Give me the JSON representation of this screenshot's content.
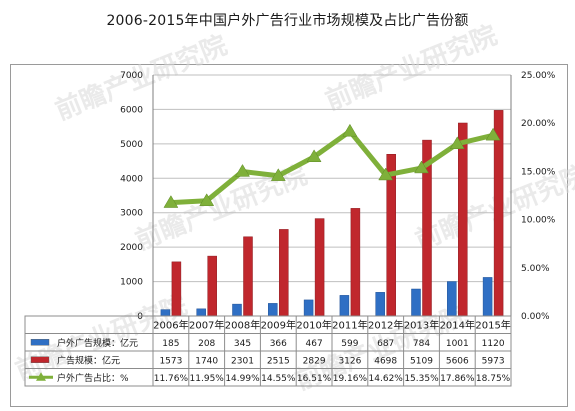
{
  "title": "2006-2015年中国户外广告行业市场规模及占比广告份额",
  "watermark": "前瞻产业研究院",
  "colors": {
    "outdoor": "#2f6fc4",
    "ad": "#c0272d",
    "share": "#7fb03a",
    "grid": "#bfbfbf"
  },
  "chart_data": {
    "type": "bar",
    "categories": [
      "2006年",
      "2007年",
      "2008年",
      "2009年",
      "2010年",
      "2011年",
      "2012年",
      "2013年",
      "2014年",
      "2015年"
    ],
    "y_left_ticks": [
      "0",
      "1000",
      "2000",
      "3000",
      "4000",
      "5000",
      "6000",
      "7000"
    ],
    "y_right_ticks": [
      "0.00%",
      "5.00%",
      "10.00%",
      "15.00%",
      "20.00%",
      "25.00%"
    ],
    "ylim_left": [
      0,
      7000
    ],
    "ylim_right": [
      0,
      25
    ],
    "grid": true,
    "legend": "table-below",
    "series": [
      {
        "name": "户外广告规模：亿元",
        "type": "bar",
        "axis": "left",
        "color": "#2f6fc4",
        "values": [
          185,
          208,
          345,
          366,
          467,
          599,
          687,
          784,
          1001,
          1120
        ],
        "labels": [
          "185",
          "208",
          "345",
          "366",
          "467",
          "599",
          "687",
          "784",
          "1001",
          "1120"
        ]
      },
      {
        "name": "广告规模：亿元",
        "type": "bar",
        "axis": "left",
        "color": "#c0272d",
        "values": [
          1573,
          1740,
          2301,
          2515,
          2829,
          3126,
          4698,
          5109,
          5606,
          5973
        ],
        "labels": [
          "1573",
          "1740",
          "2301",
          "2515",
          "2829",
          "3126",
          "4698",
          "5109",
          "5606",
          "5973"
        ]
      },
      {
        "name": "户外广告占比：%",
        "type": "line",
        "axis": "right",
        "color": "#7fb03a",
        "values": [
          11.76,
          11.95,
          14.99,
          14.55,
          16.51,
          19.16,
          14.62,
          15.35,
          17.86,
          18.75
        ],
        "labels": [
          "11.76%",
          "11.95%",
          "14.99%",
          "14.55%",
          "16.51%",
          "19.16%",
          "14.62%",
          "15.35%",
          "17.86%",
          "18.75%"
        ]
      }
    ]
  }
}
